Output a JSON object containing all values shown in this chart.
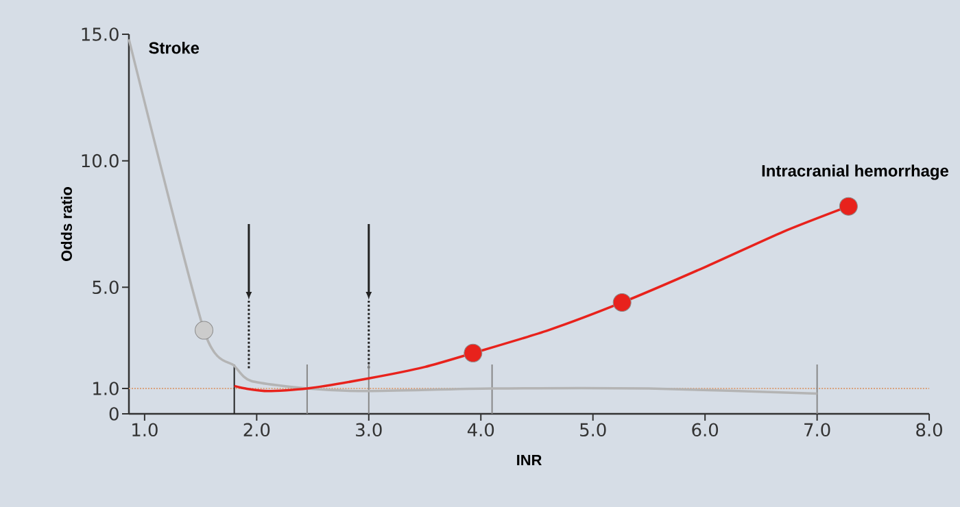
{
  "chart_data": {
    "type": "line",
    "xlabel": "INR",
    "ylabel": "Odds ratio",
    "xlim": [
      0.86,
      8.0
    ],
    "ylim": [
      0,
      15
    ],
    "xticks": [
      {
        "value": 1,
        "label": "1.0"
      },
      {
        "value": 2,
        "label": "2.0"
      },
      {
        "value": 3,
        "label": "3.0"
      },
      {
        "value": 4,
        "label": "4.0"
      },
      {
        "value": 5,
        "label": "5.0"
      },
      {
        "value": 6,
        "label": "6.0"
      },
      {
        "value": 7,
        "label": "7.0"
      },
      {
        "value": 8,
        "label": "8.0"
      }
    ],
    "yticks": [
      0,
      {
        "value": 1,
        "label": "1.0"
      },
      {
        "value": 5,
        "label": "5.0"
      },
      {
        "value": 10,
        "label": "10.0"
      },
      {
        "value": 15,
        "label": "15.0"
      }
    ],
    "grid": false,
    "marker": "none",
    "line_style": "solid",
    "series": [
      {
        "name": "Stroke",
        "color": "#b4b4b4",
        "x": [
          0.86,
          1.53,
          1.8,
          1.95,
          2.45,
          3.0,
          4.1,
          5.5,
          7.0
        ],
        "values": [
          14.8,
          3.3,
          1.9,
          1.3,
          1.0,
          0.9,
          1.0,
          1.0,
          0.8
        ]
      },
      {
        "name": "Intracranial hemorrhage",
        "color": "#e8221c",
        "x": [
          1.8,
          1.9,
          2.1,
          2.45,
          3.0,
          3.5,
          3.93,
          4.6,
          5.26,
          6.0,
          6.7,
          7.28
        ],
        "values": [
          1.1,
          1.0,
          0.9,
          1.0,
          1.4,
          1.85,
          2.4,
          3.3,
          4.4,
          5.8,
          7.2,
          8.2
        ]
      },
      {
        "type": "scatter",
        "color": "#cccccc",
        "x": [
          1.53
        ],
        "values": [
          3.3
        ]
      },
      {
        "type": "scatter",
        "color": "#e8221c",
        "x": [
          3.93,
          5.26,
          7.28
        ],
        "values": [
          2.4,
          4.4,
          8.2
        ]
      }
    ],
    "ref_lines": [
      {
        "axis": "y",
        "value": 1,
        "color": "#d9a07a",
        "line_style": "dotted"
      },
      {
        "axis": "x",
        "value": 1.93,
        "color": "#222222",
        "line_style": "dashed"
      },
      {
        "axis": "x",
        "value": 3.0,
        "color": "#222222",
        "line_style": "dashed"
      },
      {
        "axis": "x",
        "value": 1.8,
        "color": "#222222",
        "line_style": "solid"
      },
      {
        "axis": "x",
        "value": 2.45,
        "color": "#888888",
        "line_style": "solid"
      },
      {
        "axis": "x",
        "value": 3.0,
        "color": "#888888",
        "line_style": "solid"
      },
      {
        "axis": "x",
        "value": 4.1,
        "color": "#888888",
        "line_style": "solid"
      },
      {
        "axis": "x",
        "value": 7.0,
        "color": "#888888",
        "line_style": "solid"
      }
    ]
  }
}
